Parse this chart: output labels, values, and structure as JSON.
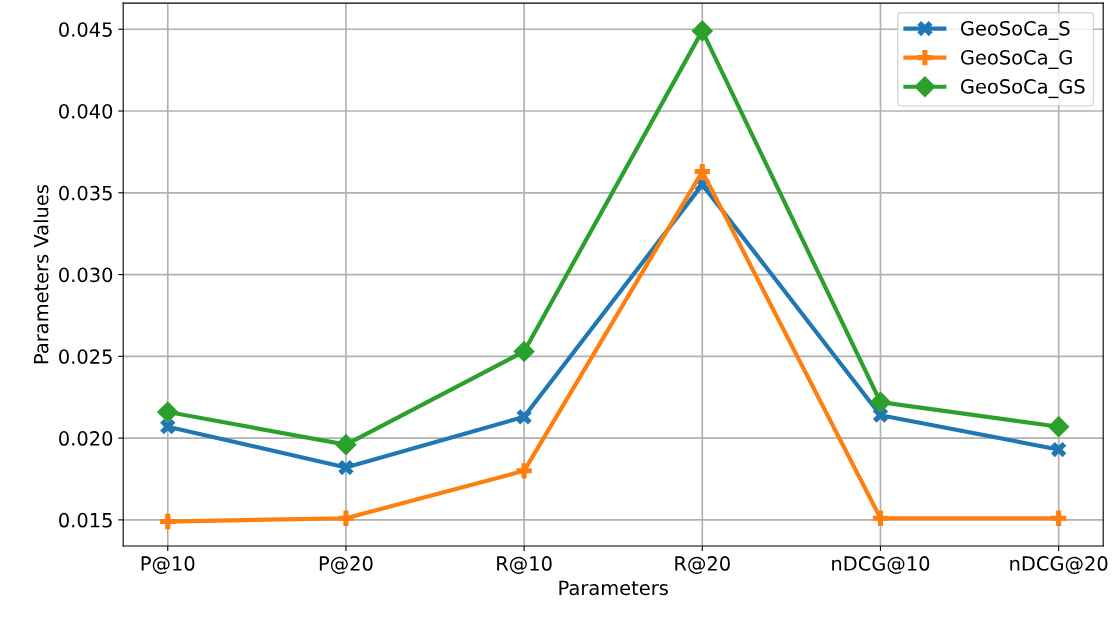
{
  "chart_data": {
    "type": "line",
    "xlabel": "Parameters",
    "ylabel": "Parameters Values",
    "categories": [
      "P@10",
      "P@20",
      "R@10",
      "R@20",
      "nDCG@10",
      "nDCG@20"
    ],
    "series": [
      {
        "name": "GeoSoCa_S",
        "color": "#1f77b4",
        "marker": "cross",
        "values": [
          0.0207,
          0.0182,
          0.0213,
          0.0355,
          0.0214,
          0.0193
        ]
      },
      {
        "name": "GeoSoCa_G",
        "color": "#ff7f0e",
        "marker": "plus",
        "values": [
          0.0149,
          0.0151,
          0.018,
          0.0363,
          0.0151,
          0.0151
        ]
      },
      {
        "name": "GeoSoCa_GS",
        "color": "#2ca02c",
        "marker": "diamond",
        "values": [
          0.0216,
          0.0196,
          0.0253,
          0.0449,
          0.0222,
          0.0207
        ]
      }
    ],
    "ylim": [
      0.0134,
      0.0466
    ],
    "yticks": [
      {
        "value": 0.015,
        "label": "0.015"
      },
      {
        "value": 0.02,
        "label": "0.020"
      },
      {
        "value": 0.025,
        "label": "0.025"
      },
      {
        "value": 0.03,
        "label": "0.030"
      },
      {
        "value": 0.035,
        "label": "0.035"
      },
      {
        "value": 0.04,
        "label": "0.040"
      },
      {
        "value": 0.045,
        "label": "0.045"
      }
    ],
    "grid": true,
    "legend": "top right",
    "line_style": "solid"
  }
}
